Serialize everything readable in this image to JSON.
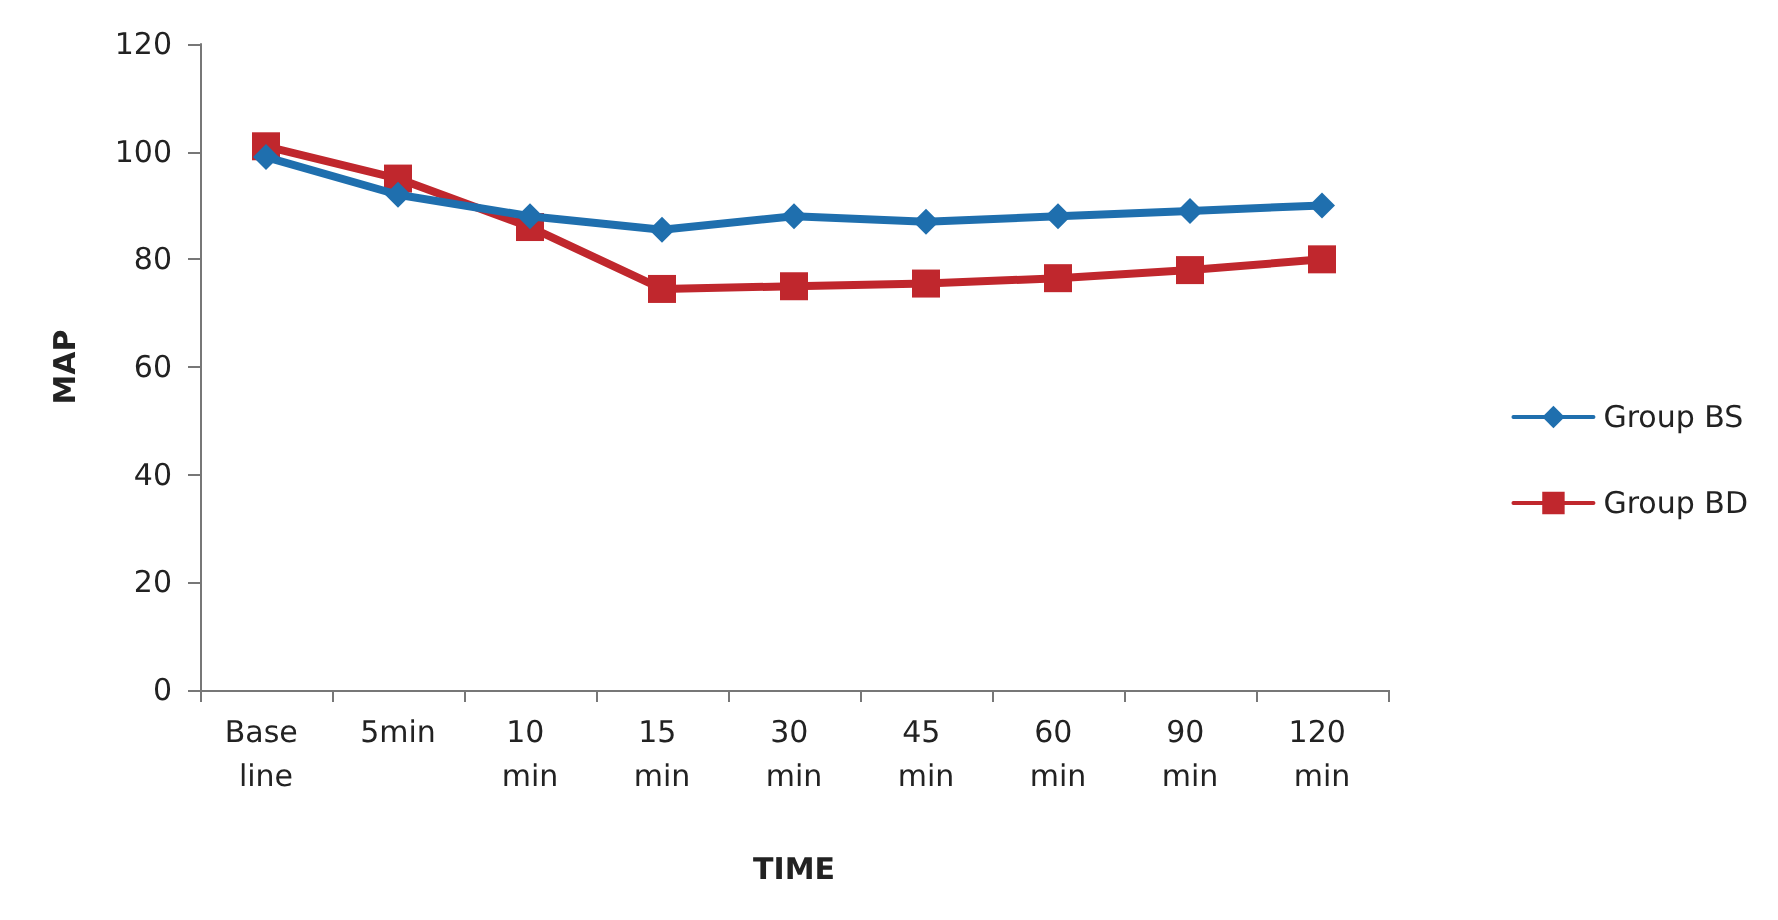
{
  "chart_data": {
    "type": "line",
    "xlabel": "TIME",
    "ylabel": "MAP",
    "categories": [
      "Base line",
      "5min",
      "10 min",
      "15 min",
      "30 min",
      "45 min",
      "60 min",
      "90 min",
      "120 min"
    ],
    "series": [
      {
        "name": "Group BS",
        "color": "#1f6fae",
        "marker": "diamond",
        "values": [
          99,
          92,
          88,
          85.5,
          88,
          87,
          88,
          89,
          90
        ]
      },
      {
        "name": "Group BD",
        "color": "#c0272d",
        "marker": "square",
        "values": [
          101,
          95,
          86,
          74.5,
          75,
          75.5,
          76.5,
          78,
          80
        ]
      }
    ],
    "ylim": [
      0,
      120
    ],
    "yticks": [
      0,
      20,
      40,
      60,
      80,
      100,
      120
    ],
    "grid": false,
    "legend": "right"
  }
}
